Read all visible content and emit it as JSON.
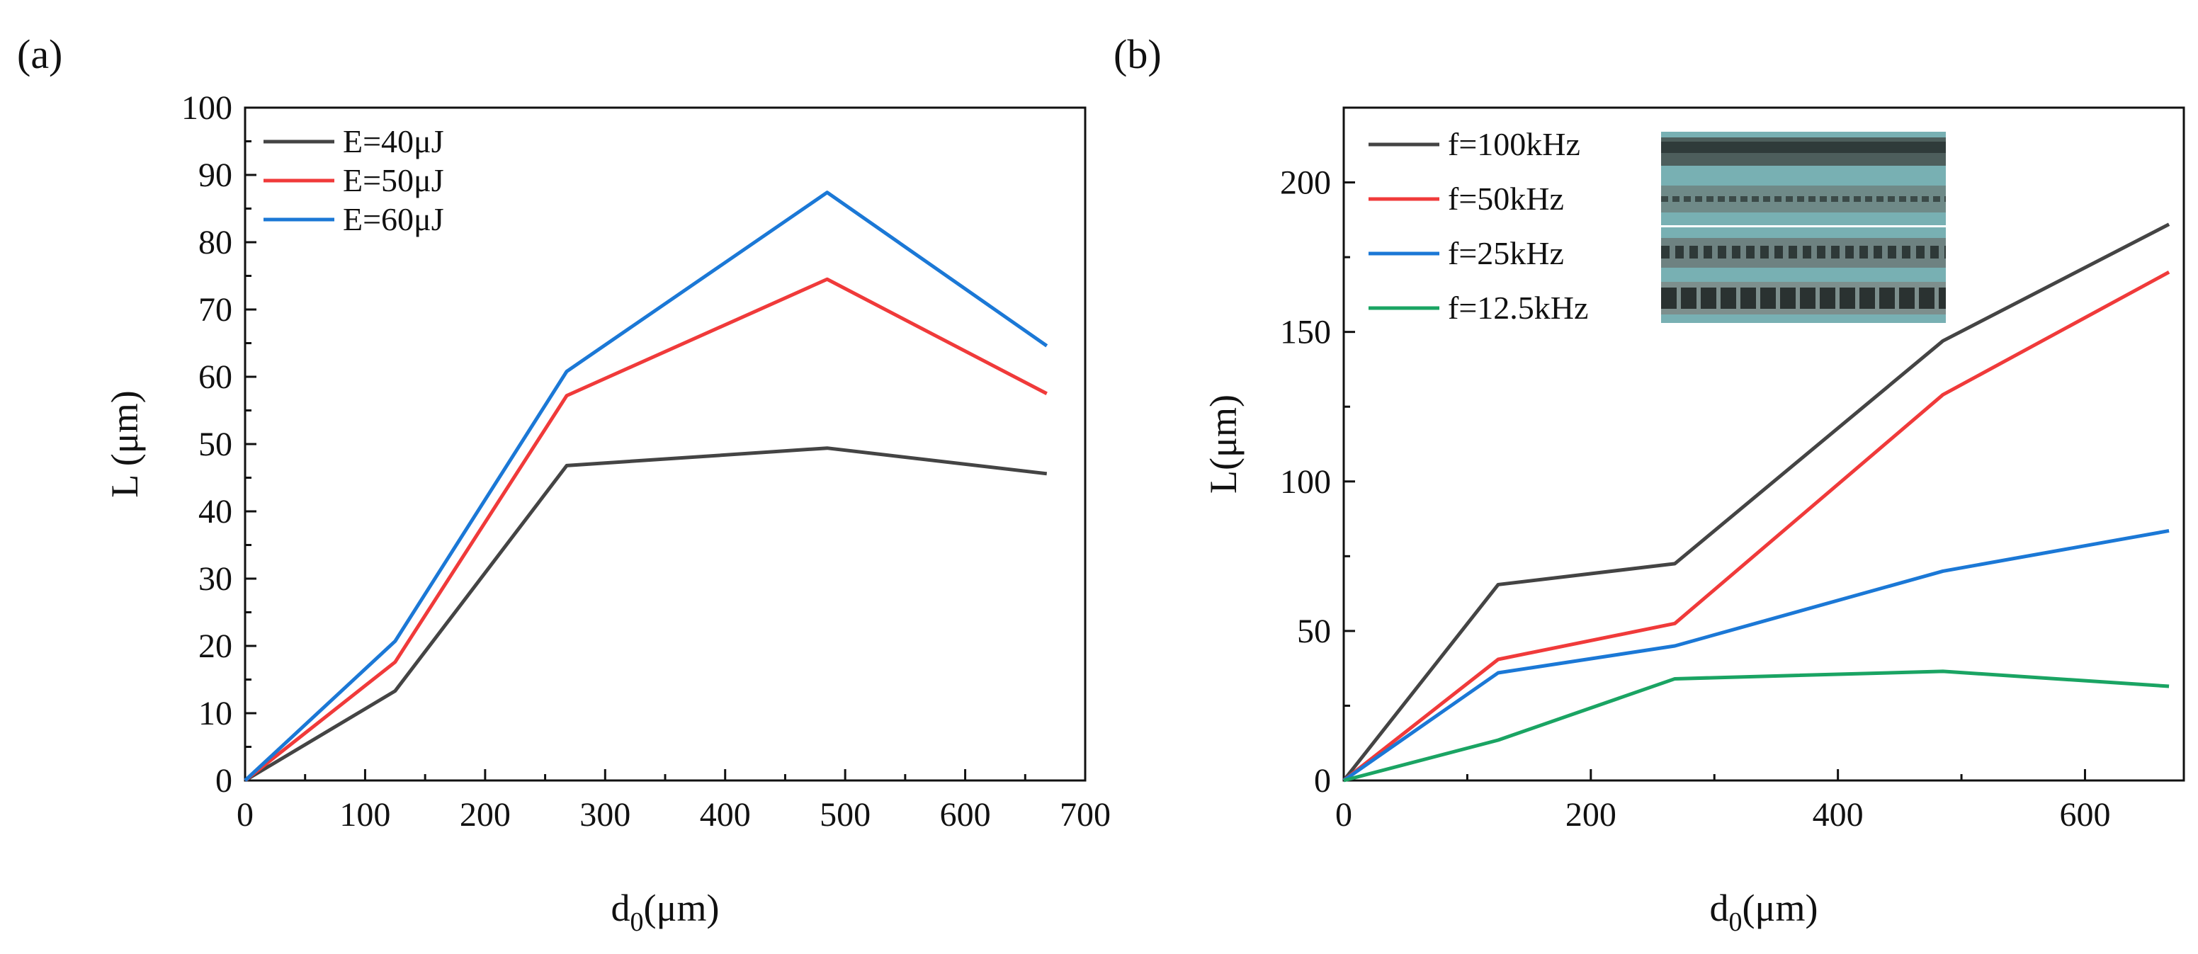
{
  "chart_data": [
    {
      "panel_label": "(a)",
      "type": "line",
      "xlabel_main": "d",
      "xlabel_sub": "0",
      "xlabel_rest": "(μm)",
      "ylabel": "L (μm)",
      "xlim": [
        0,
        700
      ],
      "ylim": [
        0,
        100
      ],
      "xticks": [
        0,
        100,
        200,
        300,
        400,
        500,
        600,
        700
      ],
      "yticks": [
        0,
        10,
        20,
        30,
        40,
        50,
        60,
        70,
        80,
        90,
        100
      ],
      "grid": false,
      "legend_position": "top-left",
      "x": [
        0,
        125,
        268,
        485,
        668
      ],
      "series": [
        {
          "name": "E=40μJ",
          "color": "#444444",
          "values": [
            0,
            13.3,
            46.8,
            49.4,
            45.6
          ]
        },
        {
          "name": "E=50μJ",
          "color": "#f03a3a",
          "values": [
            0,
            17.6,
            57.2,
            74.5,
            57.5
          ]
        },
        {
          "name": "E=60μJ",
          "color": "#1b78d6",
          "values": [
            0,
            20.7,
            60.8,
            87.4,
            64.6
          ]
        }
      ]
    },
    {
      "panel_label": "(b)",
      "type": "line",
      "xlabel_main": "d",
      "xlabel_sub": "0",
      "xlabel_rest": "(μm)",
      "ylabel": "L(μm)",
      "xlim": [
        0,
        680
      ],
      "ylim": [
        0,
        225
      ],
      "xticks": [
        0,
        200,
        400,
        600
      ],
      "yticks": [
        0,
        50,
        100,
        150,
        200
      ],
      "grid": false,
      "legend_position": "top-left",
      "inset": "micrograph-image",
      "x": [
        0,
        125,
        268,
        485,
        668
      ],
      "series": [
        {
          "name": "f=100kHz",
          "color": "#444444",
          "values": [
            0,
            65.5,
            72.5,
            147,
            186
          ]
        },
        {
          "name": "f=50kHz",
          "color": "#f03a3a",
          "values": [
            0,
            40.5,
            52.5,
            129,
            170
          ]
        },
        {
          "name": "f=25kHz",
          "color": "#1b78d6",
          "values": [
            0,
            36,
            45,
            70,
            83.5
          ]
        },
        {
          "name": "f=12.5kHz",
          "color": "#1aa463",
          "values": [
            0,
            13.5,
            34,
            36.5,
            31.5
          ]
        }
      ]
    }
  ]
}
